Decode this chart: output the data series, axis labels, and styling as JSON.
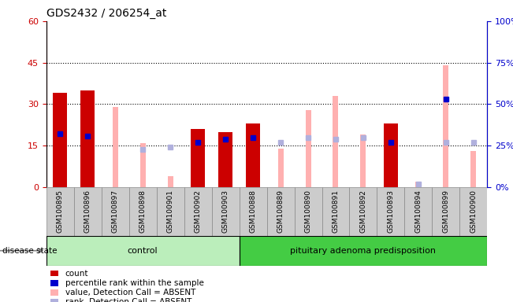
{
  "title": "GDS2432 / 206254_at",
  "samples": [
    "GSM100895",
    "GSM100896",
    "GSM100897",
    "GSM100898",
    "GSM100901",
    "GSM100902",
    "GSM100903",
    "GSM100888",
    "GSM100889",
    "GSM100890",
    "GSM100891",
    "GSM100892",
    "GSM100893",
    "GSM100894",
    "GSM100899",
    "GSM100900"
  ],
  "n_control": 7,
  "count": [
    34,
    35,
    0,
    0,
    0,
    21,
    20,
    23,
    0,
    0,
    0,
    0,
    23,
    0,
    0,
    0
  ],
  "percentile_rank": [
    32,
    31,
    null,
    null,
    null,
    27,
    29,
    30,
    null,
    null,
    null,
    null,
    27,
    null,
    53,
    null
  ],
  "value_absent": [
    null,
    null,
    29,
    16,
    4,
    null,
    null,
    null,
    14,
    28,
    33,
    19,
    null,
    2,
    44,
    13
  ],
  "rank_absent": [
    null,
    null,
    null,
    23,
    24,
    null,
    null,
    null,
    27,
    30,
    29,
    30,
    null,
    2,
    27,
    27
  ],
  "ylim_left": [
    0,
    60
  ],
  "ylim_right": [
    0,
    100
  ],
  "yticks_left": [
    0,
    15,
    30,
    45,
    60
  ],
  "yticks_right": [
    0,
    25,
    50,
    75,
    100
  ],
  "ytick_labels_left": [
    "0",
    "15",
    "30",
    "45",
    "60"
  ],
  "ytick_labels_right": [
    "0%",
    "25%",
    "50%",
    "75%",
    "100%"
  ],
  "color_count": "#cc0000",
  "color_percentile": "#0000cc",
  "color_value_absent": "#ffb0b0",
  "color_rank_absent": "#b0b0dd",
  "color_control": "#bbeebb",
  "color_pituitary": "#44cc44",
  "legend_items": [
    "count",
    "percentile rank within the sample",
    "value, Detection Call = ABSENT",
    "rank, Detection Call = ABSENT"
  ],
  "bar_width": 0.5,
  "thin_bar_width": 0.08
}
